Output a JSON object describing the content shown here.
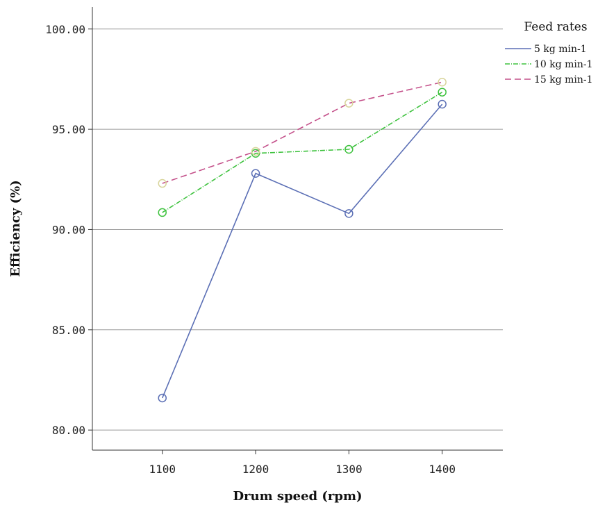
{
  "chart_data": {
    "type": "line",
    "xlabel": "Drum speed (rpm)",
    "ylabel": "Efficiency (%)",
    "x": [
      1100,
      1200,
      1300,
      1400
    ],
    "x_tick_labels": [
      "1100",
      "1200",
      "1300",
      "1400"
    ],
    "y_ticks": [
      80,
      85,
      90,
      95,
      100
    ],
    "y_tick_labels": [
      "80.00",
      "85.00",
      "90.00",
      "95.00",
      "100.00"
    ],
    "xlim": [
      1025,
      1465
    ],
    "ylim": [
      79.0,
      101.1
    ],
    "grid": "horizontal",
    "legend": {
      "title": "Feed rates",
      "placement": "top-right"
    },
    "series": [
      {
        "name": "5 kg min-1",
        "values": [
          81.6,
          92.8,
          90.8,
          96.25
        ],
        "color": "#5b6fb5",
        "marker_color": "#5b6fb5",
        "dash": "solid"
      },
      {
        "name": "10 kg min-1",
        "values": [
          90.85,
          93.8,
          94.0,
          96.85
        ],
        "color": "#3ec23e",
        "marker_color": "#3ec23e",
        "dash": "dashdot"
      },
      {
        "name": "15 kg min-1",
        "values": [
          92.3,
          93.9,
          96.3,
          97.35
        ],
        "color": "#c4508a",
        "marker_color": "#d8d49a",
        "dash": "dashed"
      }
    ]
  }
}
